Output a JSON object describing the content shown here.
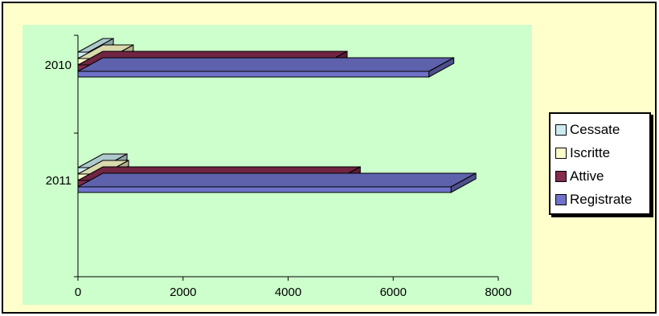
{
  "chart_data": {
    "type": "bar",
    "orientation": "horizontal",
    "style": "3d",
    "categories": [
      "2010",
      "2011"
    ],
    "series": [
      {
        "name": "Registrate",
        "color": "#6f72c9",
        "values": [
          6680,
          7100
        ]
      },
      {
        "name": "Attive",
        "color": "#842b4e",
        "values": [
          4650,
          4900
        ]
      },
      {
        "name": "Iscritte",
        "color": "#ffffcc",
        "values": [
          580,
          490
        ]
      },
      {
        "name": "Cessate",
        "color": "#ccecf0",
        "values": [
          200,
          460
        ]
      }
    ],
    "xlim": [
      0,
      8000
    ],
    "xticks": [
      "0",
      "2000",
      "4000",
      "6000",
      "8000"
    ],
    "grid": false,
    "legend_position": "right"
  },
  "legend": {
    "items": [
      {
        "label": "Cessate",
        "color": "#ccecf0"
      },
      {
        "label": "Iscritte",
        "color": "#ffffcc"
      },
      {
        "label": "Attive",
        "color": "#842b4e"
      },
      {
        "label": "Registrate",
        "color": "#6f72c9"
      }
    ]
  }
}
